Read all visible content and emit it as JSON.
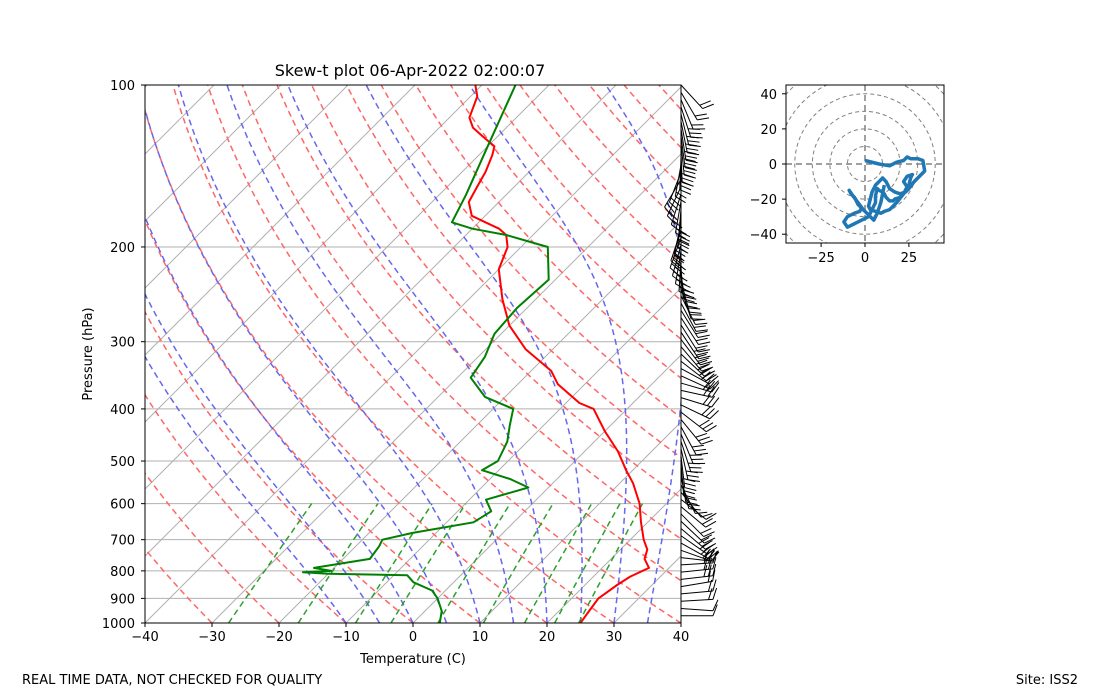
{
  "figure": {
    "footer_left": "REAL TIME DATA, NOT CHECKED FOR QUALITY",
    "footer_right": "Site: ISS2"
  },
  "chart_data": [
    {
      "type": "line",
      "subtype": "skew-t",
      "title": "Skew-t plot 06-Apr-2022 02:00:07",
      "xlabel": "Temperature (C)",
      "ylabel": "Pressure (hPa)",
      "xlim": [
        -40,
        40
      ],
      "ylim": [
        1000,
        100
      ],
      "y_scale": "log",
      "x_ticks": [
        "−40",
        "−30",
        "−20",
        "−10",
        "0",
        "10",
        "20",
        "30",
        "40"
      ],
      "y_ticks": [
        "100",
        "200",
        "300",
        "400",
        "500",
        "600",
        "700",
        "800",
        "900",
        "1000"
      ],
      "grid": true,
      "colors": {
        "temperature": "#ff0000",
        "dewpoint": "#008000",
        "dry_adiabats": "#ff6666",
        "moist_adiabats": "#6666ee",
        "mixing_ratio": "#2ca02c",
        "isotherms": "#aaaaaa"
      },
      "series": [
        {
          "key": "temperature",
          "x_temperature_c": [
            25.0,
            24.5,
            24.0,
            24.8,
            25.5,
            27.0,
            25.0,
            24.0,
            22.0,
            19.0,
            16.0,
            12.0,
            9.0,
            5.0,
            0.0,
            -5.0,
            -8.0,
            -14.0,
            -17.0,
            -24.0,
            -30.0,
            -35.0,
            -40.0,
            -42.0,
            -44.0,
            -46.0,
            -49.0,
            -52.0,
            -54.5,
            -55.5,
            -56.5,
            -58.0,
            -59.0,
            -62.0,
            -65.0,
            -67.0,
            -69.0,
            -71.0
          ],
          "y_pressure_hpa": [
            1000,
            950,
            900,
            850,
            820,
            790,
            760,
            730,
            700,
            650,
            600,
            550,
            520,
            480,
            440,
            400,
            390,
            360,
            340,
            310,
            280,
            250,
            220,
            200,
            190,
            185,
            180,
            175,
            165,
            155,
            145,
            135,
            130,
            125,
            120,
            115,
            105,
            100
          ]
        },
        {
          "key": "dewpoint",
          "x_temperature_c": [
            4.0,
            2.5,
            0.0,
            -2.0,
            -6.0,
            -8.0,
            -20.0,
            -24.0,
            -20.0,
            -23.0,
            -16.0,
            -16.5,
            -17.0,
            -13.5,
            -6.0,
            -5.0,
            -7.5,
            -3.0,
            -7.0,
            -12.5,
            -11.5,
            -13.0,
            -15.0,
            -17.0,
            -23.0,
            -28.0,
            -29.0,
            -31.0,
            -31.5,
            -31.0,
            -36.0,
            -40.0,
            -44.0,
            -50.0,
            -54.0,
            -56.0,
            -60.0,
            -65.0
          ],
          "y_pressure_hpa": [
            1000,
            950,
            900,
            870,
            840,
            815,
            810,
            805,
            800,
            790,
            760,
            720,
            700,
            680,
            650,
            620,
            590,
            560,
            540,
            520,
            500,
            460,
            430,
            400,
            380,
            350,
            320,
            290,
            260,
            230,
            200,
            195,
            190,
            185,
            180,
            160,
            130,
            100
          ]
        }
      ]
    },
    {
      "type": "line",
      "subtype": "hodograph",
      "xlim": [
        -45,
        45
      ],
      "ylim": [
        -45,
        45
      ],
      "x_ticks": [
        "−25",
        "0",
        "25"
      ],
      "y_ticks": [
        "40",
        "20",
        "0",
        "−20",
        "−40"
      ],
      "ring_step": 10,
      "color": "#1f77b4",
      "series": [
        {
          "key": "wind",
          "u": [
            0,
            8,
            14,
            18,
            22,
            24,
            26,
            30,
            33,
            34,
            28,
            25,
            23,
            20,
            17,
            14,
            12,
            10,
            8,
            6,
            4,
            3,
            2,
            3,
            6,
            9,
            11,
            14,
            18,
            22,
            25,
            26,
            27,
            24,
            22,
            24,
            22,
            20,
            17,
            16,
            14,
            12,
            11,
            10,
            8,
            7,
            6,
            6,
            4,
            2,
            -2,
            -6,
            -10,
            -12,
            -10,
            -6,
            -3,
            -2,
            -4,
            -6,
            -8,
            -9,
            -7,
            -4,
            -1,
            1,
            3,
            4,
            5,
            6,
            7,
            8,
            9,
            10,
            11
          ],
          "v": [
            2,
            0,
            -1,
            1,
            2,
            4,
            3,
            3,
            2,
            -4,
            -10,
            -14,
            -16,
            -17,
            -16,
            -14,
            -10,
            -8,
            -10,
            -12,
            -16,
            -20,
            -24,
            -26,
            -27,
            -28,
            -27,
            -26,
            -22,
            -17,
            -12,
            -8,
            -6,
            -7,
            -10,
            -13,
            -17,
            -19,
            -20,
            -21,
            -21,
            -19,
            -17,
            -16,
            -15,
            -14,
            -18,
            -22,
            -26,
            -30,
            -32,
            -34,
            -36,
            -33,
            -30,
            -28,
            -27,
            -25,
            -23,
            -19,
            -17,
            -15,
            -18,
            -22,
            -26,
            -28,
            -30,
            -31,
            -32,
            -30,
            -28,
            -25,
            -22,
            -17,
            -12
          ]
        }
      ]
    }
  ]
}
